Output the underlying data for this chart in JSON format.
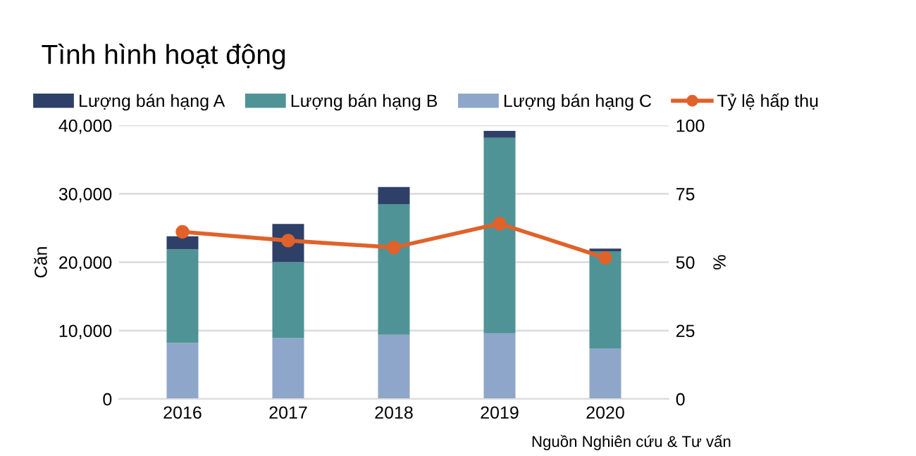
{
  "chart_data": {
    "type": "bar",
    "title": "Tình hình hoạt động",
    "categories": [
      "2016",
      "2017",
      "2018",
      "2019",
      "2020"
    ],
    "stacked": true,
    "series": [
      {
        "name": "Lượng bán hạng C",
        "color": "#8ea6c9",
        "values": [
          8200,
          8900,
          9400,
          9600,
          7400
        ]
      },
      {
        "name": "Lượng bán hạng B",
        "color": "#509396",
        "values": [
          13700,
          11100,
          19100,
          28600,
          14200
        ]
      },
      {
        "name": "Lượng bán hạng A",
        "color": "#2e4068",
        "values": [
          1900,
          5600,
          2500,
          1000,
          400
        ]
      },
      {
        "name": "Tỷ lệ hấp thụ",
        "type": "line",
        "axis": "y2",
        "color": "#e0622a",
        "values": [
          61.1,
          57.9,
          55.4,
          64.1,
          51.6
        ]
      }
    ],
    "ylabel": "Căn",
    "y2label": "%",
    "ylim": [
      0,
      40000
    ],
    "yticks": [
      {
        "value": 0,
        "label": "0"
      },
      {
        "value": 10000,
        "label": "10,000"
      },
      {
        "value": 20000,
        "label": "20,000"
      },
      {
        "value": 30000,
        "label": "30,000"
      },
      {
        "value": 40000,
        "label": "40,000"
      }
    ],
    "y2lim": [
      0,
      100
    ],
    "y2ticks": [
      0,
      25,
      50,
      75,
      100
    ],
    "grid": "y",
    "legend": "top",
    "marker": "circle",
    "line_style": "solid",
    "annotations": [
      "Nguồn Nghiên cứu & Tư vấn"
    ]
  }
}
